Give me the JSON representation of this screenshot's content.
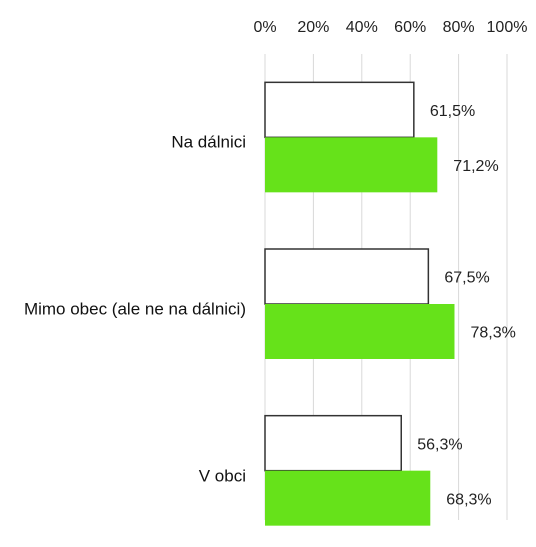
{
  "chart_data": {
    "type": "barh",
    "categories": [
      "Na dálnici",
      "Mimo obec (ale ne na dálnici)",
      "V obci"
    ],
    "series": [
      {
        "color": "#ffffff",
        "values": [
          61.5,
          67.5,
          56.3
        ],
        "value_labels": [
          "61,5%",
          "67,5%",
          "56,3%"
        ]
      },
      {
        "color": "#66e21a",
        "values": [
          71.2,
          78.3,
          68.3
        ],
        "value_labels": [
          "71,2%",
          "78,3%",
          "68,3%"
        ]
      }
    ],
    "xlim": [
      0,
      100
    ],
    "xticks": [
      {
        "value": 0,
        "label": "0%"
      },
      {
        "value": 20,
        "label": "20%"
      },
      {
        "value": 40,
        "label": "40%"
      },
      {
        "value": 60,
        "label": "60%"
      },
      {
        "value": 80,
        "label": "80%"
      },
      {
        "value": 100,
        "label": "100%"
      }
    ],
    "grid": true
  }
}
